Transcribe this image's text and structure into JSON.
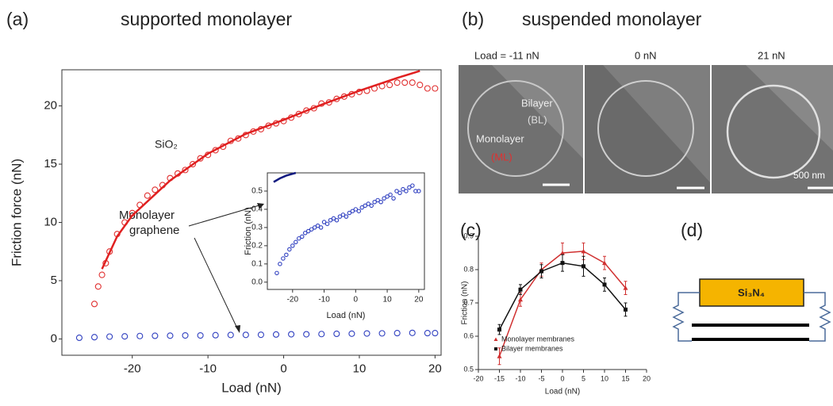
{
  "panels": {
    "a_label": "(a)",
    "a_title": "supported monolayer",
    "b_label": "(b)",
    "b_title": "suspended monolayer",
    "c_label": "(c)",
    "d_label": "(d)"
  },
  "images": {
    "load_labels": [
      "Load = -11 nN",
      "0 nN",
      "21 nN"
    ],
    "bilayer": "Bilayer",
    "bilayer_abbr": "(BL)",
    "monolayer": "Monolayer",
    "monolayer_abbr": "(ML)",
    "scale": "500 nm"
  },
  "diagram": {
    "tip": "Si₃N₄"
  },
  "chart_data": [
    {
      "type": "scatter",
      "x_label": "Load (nN)",
      "y_label": "Friction force (nN)",
      "annotations": [
        "SiO₂",
        "Monolayer",
        "graphene"
      ],
      "xlim": [
        -29.3,
        20.8
      ],
      "ylim": [
        -1.4,
        23.1
      ],
      "xticks": [
        -20,
        -10,
        0,
        10,
        20
      ],
      "yticks": [
        0,
        5,
        10,
        15,
        20
      ],
      "series": [
        {
          "color": "#e03030",
          "marker": "circle",
          "x": [
            -25,
            -24.5,
            -24,
            -23.5,
            -23,
            -22,
            -21,
            -20,
            -19,
            -18,
            -17,
            -16,
            -15,
            -14,
            -13,
            -12,
            -11,
            -10,
            -9,
            -8,
            -7,
            -6,
            -5,
            -4,
            -3,
            -2,
            -1,
            0,
            1,
            2,
            3,
            4,
            5,
            6,
            7,
            8,
            9,
            10,
            11,
            12,
            13,
            14,
            15,
            16,
            17,
            18,
            19,
            20
          ],
          "values": [
            3,
            4.5,
            5.5,
            6.5,
            7.5,
            9,
            10,
            10.8,
            11.5,
            12.3,
            12.8,
            13.2,
            13.8,
            14.2,
            14.5,
            15,
            15.5,
            15.8,
            16.2,
            16.5,
            17,
            17.2,
            17.5,
            17.8,
            18,
            18.3,
            18.5,
            18.7,
            19,
            19.3,
            19.6,
            19.8,
            20.2,
            20.3,
            20.6,
            20.8,
            21,
            21.2,
            21.3,
            21.5,
            21.7,
            21.8,
            22,
            22,
            22,
            21.8,
            21.5,
            21.5
          ]
        },
        {
          "color": "#e02020",
          "marker": "line",
          "x": [
            -24,
            -22,
            -20,
            -15,
            -10,
            -5,
            0,
            5,
            10,
            15,
            18
          ],
          "values": [
            6,
            8.8,
            10.6,
            13.6,
            15.9,
            17.6,
            18.8,
            20.1,
            21.3,
            22.4,
            23
          ]
        },
        {
          "color": "#3040c0",
          "marker": "circle",
          "x": [
            -27,
            -25,
            -23,
            -21,
            -19,
            -17,
            -15,
            -13,
            -11,
            -9,
            -7,
            -5,
            -3,
            -1,
            1,
            3,
            5,
            7,
            9,
            11,
            13,
            15,
            17,
            19,
            20
          ],
          "values": [
            0.1,
            0.15,
            0.2,
            0.22,
            0.25,
            0.27,
            0.28,
            0.3,
            0.3,
            0.32,
            0.34,
            0.35,
            0.36,
            0.38,
            0.4,
            0.4,
            0.42,
            0.44,
            0.45,
            0.47,
            0.48,
            0.5,
            0.52,
            0.5,
            0.5
          ]
        }
      ]
    },
    {
      "type": "scatter",
      "x_label": "Load (nN)",
      "y_label": "Friction (nN)",
      "xlim": [
        -28,
        21.8
      ],
      "ylim": [
        -0.04,
        0.6
      ],
      "xticks": [
        -20,
        -10,
        0,
        10,
        20
      ],
      "yticks": [
        {
          "value": 0,
          "label": "0.0"
        },
        0.1,
        0.2,
        0.3,
        0.4,
        0.5
      ],
      "series": [
        {
          "color": "#3040c0",
          "marker": "circle",
          "x": [
            -25,
            -24,
            -23,
            -22,
            -21,
            -20,
            -19,
            -18,
            -17,
            -16,
            -15,
            -14,
            -13,
            -12,
            -11,
            -10,
            -9,
            -8,
            -7,
            -6,
            -5,
            -4,
            -3,
            -2,
            -1,
            0,
            1,
            2,
            3,
            4,
            5,
            6,
            7,
            8,
            9,
            10,
            11,
            12,
            13,
            14,
            15,
            16,
            17,
            18,
            19,
            20
          ],
          "values": [
            0.05,
            0.1,
            0.13,
            0.15,
            0.18,
            0.2,
            0.22,
            0.24,
            0.25,
            0.27,
            0.28,
            0.29,
            0.3,
            0.31,
            0.3,
            0.33,
            0.32,
            0.34,
            0.35,
            0.34,
            0.36,
            0.37,
            0.36,
            0.38,
            0.39,
            0.4,
            0.39,
            0.41,
            0.42,
            0.43,
            0.42,
            0.44,
            0.45,
            0.44,
            0.46,
            0.47,
            0.48,
            0.46,
            0.5,
            0.49,
            0.51,
            0.5,
            0.52,
            0.53,
            0.5,
            0.5
          ]
        },
        {
          "color": "#101a80",
          "marker": "line",
          "x": [
            -26,
            -24,
            -22,
            -20,
            -19
          ],
          "values": [
            0.55,
            0.57,
            0.585,
            0.595,
            0.6
          ]
        }
      ]
    },
    {
      "type": "line",
      "x_label": "Load (nN)",
      "y_label": "Friction (nN)",
      "legend": "bottom-left",
      "xlim": [
        -20,
        20
      ],
      "ylim": [
        0.5,
        0.9
      ],
      "xticks": [
        -20,
        -15,
        -10,
        -5,
        0,
        5,
        10,
        15,
        20
      ],
      "yticks": [
        0.5,
        0.6,
        0.7,
        0.8,
        0.9
      ],
      "x": [
        -15,
        -10,
        -5,
        0,
        5,
        10,
        15
      ],
      "series": [
        {
          "name": "Monolayer membranes",
          "color": "#d03030",
          "marker": "triangle",
          "values": [
            0.54,
            0.71,
            0.8,
            0.85,
            0.855,
            0.82,
            0.745
          ],
          "errors": [
            0.025,
            0.02,
            0.02,
            0.03,
            0.025,
            0.02,
            0.02
          ]
        },
        {
          "name": "Bilayer membranes",
          "color": "#111111",
          "marker": "square",
          "values": [
            0.62,
            0.74,
            0.795,
            0.82,
            0.81,
            0.755,
            0.68
          ],
          "errors": [
            0.015,
            0.015,
            0.02,
            0.025,
            0.03,
            0.02,
            0.02
          ]
        }
      ]
    }
  ]
}
